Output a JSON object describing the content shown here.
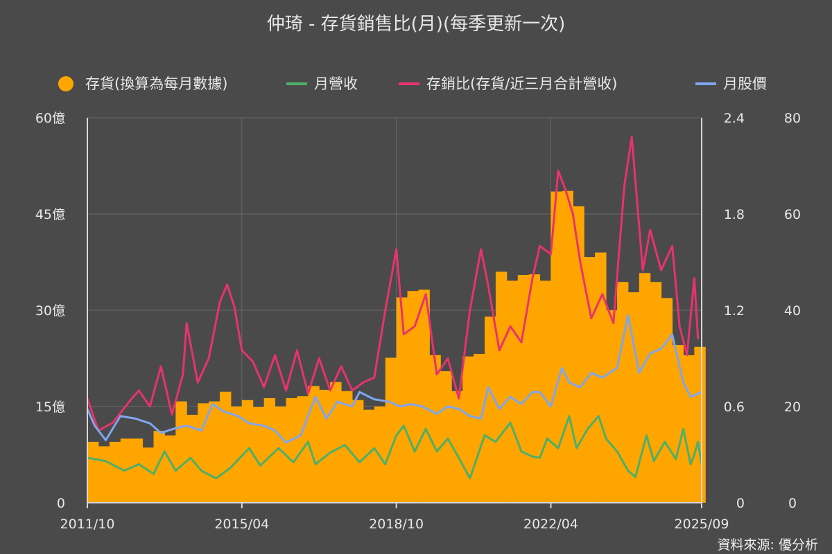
{
  "chart_data": {
    "type": "bar",
    "title": "仲琦 - 存貨銷售比(月)(每季更新一次)",
    "source": "資料來源: 優分析",
    "x_range": [
      "2011/10",
      "2025/09"
    ],
    "x_tick_labels": [
      "2011/10",
      "2015/04",
      "2018/10",
      "2022/04",
      "2025/09"
    ],
    "y_left": {
      "ticks": [
        "0",
        "15億",
        "30億",
        "45億",
        "60億"
      ],
      "range": [
        0,
        60
      ],
      "unit": "億"
    },
    "y_mid": {
      "ticks": [
        "0",
        "0.6",
        "1.2",
        "1.8",
        "2.4"
      ],
      "range": [
        0,
        2.4
      ]
    },
    "y_right": {
      "ticks": [
        "0",
        "20",
        "40",
        "60",
        "80"
      ],
      "range": [
        0,
        80
      ]
    },
    "legend": [
      {
        "label": "存貨(換算為每月數據)",
        "marker": "dot",
        "color": "#ffa500"
      },
      {
        "label": "月營收",
        "marker": "line",
        "color": "#4caf6a"
      },
      {
        "label": "存銷比(存貨/近三月合計營收)",
        "marker": "line",
        "color": "#e8336c"
      },
      {
        "label": "月股價",
        "marker": "line",
        "color": "#7fa6ee"
      }
    ],
    "series": [
      {
        "name": "存貨(換算為每月數據)",
        "kind": "bar",
        "axis": "left",
        "color": "#ffa500",
        "points": [
          [
            "2011-10",
            9.5
          ],
          [
            "2012-01",
            8.8
          ],
          [
            "2012-04",
            9.5
          ],
          [
            "2012-07",
            10.0
          ],
          [
            "2012-10",
            10.0
          ],
          [
            "2013-01",
            8.6
          ],
          [
            "2013-04",
            11.2
          ],
          [
            "2013-07",
            10.5
          ],
          [
            "2013-10",
            15.8
          ],
          [
            "2014-01",
            13.7
          ],
          [
            "2014-04",
            15.5
          ],
          [
            "2014-07",
            15.8
          ],
          [
            "2014-10",
            17.3
          ],
          [
            "2015-01",
            15.0
          ],
          [
            "2015-04",
            16.0
          ],
          [
            "2015-07",
            14.9
          ],
          [
            "2015-10",
            16.3
          ],
          [
            "2016-01",
            15.0
          ],
          [
            "2016-04",
            16.3
          ],
          [
            "2016-07",
            16.6
          ],
          [
            "2016-10",
            18.2
          ],
          [
            "2017-01",
            17.6
          ],
          [
            "2017-04",
            18.8
          ],
          [
            "2017-07",
            17.4
          ],
          [
            "2017-10",
            16.0
          ],
          [
            "2018-01",
            14.5
          ],
          [
            "2018-04",
            15.0
          ],
          [
            "2018-07",
            22.6
          ],
          [
            "2018-10",
            32.0
          ],
          [
            "2019-01",
            33.0
          ],
          [
            "2019-04",
            33.2
          ],
          [
            "2019-07",
            23.0
          ],
          [
            "2019-10",
            20.5
          ],
          [
            "2020-01",
            17.4
          ],
          [
            "2020-04",
            22.8
          ],
          [
            "2020-07",
            23.2
          ],
          [
            "2020-10",
            29.0
          ],
          [
            "2021-01",
            36.0
          ],
          [
            "2021-04",
            34.6
          ],
          [
            "2021-07",
            35.5
          ],
          [
            "2021-10",
            35.6
          ],
          [
            "2022-01",
            34.6
          ],
          [
            "2022-04",
            48.5
          ],
          [
            "2022-07",
            48.6
          ],
          [
            "2022-10",
            46.2
          ],
          [
            "2023-01",
            38.3
          ],
          [
            "2023-04",
            39.0
          ],
          [
            "2023-07",
            30.0
          ],
          [
            "2023-10",
            34.4
          ],
          [
            "2024-01",
            32.8
          ],
          [
            "2024-04",
            35.8
          ],
          [
            "2024-07",
            34.4
          ],
          [
            "2024-10",
            31.9
          ],
          [
            "2025-01",
            24.6
          ],
          [
            "2025-04",
            23.0
          ],
          [
            "2025-07",
            24.3
          ]
        ]
      },
      {
        "name": "月營收",
        "kind": "line",
        "axis": "left",
        "color": "#4caf6a",
        "points": [
          [
            "2011-10",
            7.0
          ],
          [
            "2012-03",
            6.5
          ],
          [
            "2012-08",
            5.0
          ],
          [
            "2012-12",
            6.0
          ],
          [
            "2013-04",
            4.5
          ],
          [
            "2013-07",
            8.0
          ],
          [
            "2013-10",
            5.0
          ],
          [
            "2014-02",
            7.0
          ],
          [
            "2014-05",
            5.0
          ],
          [
            "2014-09",
            3.8
          ],
          [
            "2015-01",
            5.5
          ],
          [
            "2015-06",
            8.5
          ],
          [
            "2015-09",
            5.8
          ],
          [
            "2016-02",
            8.5
          ],
          [
            "2016-06",
            6.3
          ],
          [
            "2016-10",
            9.5
          ],
          [
            "2016-12",
            6.0
          ],
          [
            "2017-04",
            7.8
          ],
          [
            "2017-08",
            9.0
          ],
          [
            "2017-12",
            6.3
          ],
          [
            "2018-04",
            8.5
          ],
          [
            "2018-07",
            6.0
          ],
          [
            "2018-10",
            10.5
          ],
          [
            "2018-12",
            12.0
          ],
          [
            "2019-03",
            8.0
          ],
          [
            "2019-06",
            11.5
          ],
          [
            "2019-09",
            8.0
          ],
          [
            "2019-12",
            10.0
          ],
          [
            "2020-03",
            7.0
          ],
          [
            "2020-06",
            3.8
          ],
          [
            "2020-10",
            10.5
          ],
          [
            "2021-01",
            9.5
          ],
          [
            "2021-05",
            12.5
          ],
          [
            "2021-08",
            8.0
          ],
          [
            "2021-11",
            7.2
          ],
          [
            "2022-01",
            7.0
          ],
          [
            "2022-03",
            10.0
          ],
          [
            "2022-06",
            8.5
          ],
          [
            "2022-09",
            13.5
          ],
          [
            "2022-11",
            8.5
          ],
          [
            "2023-02",
            11.5
          ],
          [
            "2023-05",
            13.5
          ],
          [
            "2023-07",
            10.0
          ],
          [
            "2023-10",
            8.0
          ],
          [
            "2024-01",
            5.0
          ],
          [
            "2024-03",
            4.0
          ],
          [
            "2024-06",
            10.5
          ],
          [
            "2024-08",
            6.5
          ],
          [
            "2024-11",
            9.5
          ],
          [
            "2025-02",
            6.8
          ],
          [
            "2025-04",
            11.5
          ],
          [
            "2025-06",
            6.0
          ],
          [
            "2025-07",
            7.5
          ],
          [
            "2025-08",
            9.5
          ],
          [
            "2025-09",
            6.0
          ]
        ]
      },
      {
        "name": "存銷比(存貨/近三月合計營收)",
        "kind": "line",
        "axis": "mid",
        "color": "#e8336c",
        "points": [
          [
            "2011-10",
            0.65
          ],
          [
            "2012-01",
            0.45
          ],
          [
            "2012-05",
            0.5
          ],
          [
            "2012-09",
            0.62
          ],
          [
            "2012-12",
            0.7
          ],
          [
            "2013-03",
            0.6
          ],
          [
            "2013-06",
            0.85
          ],
          [
            "2013-09",
            0.55
          ],
          [
            "2013-12",
            0.8
          ],
          [
            "2014-01",
            1.12
          ],
          [
            "2014-04",
            0.75
          ],
          [
            "2014-07",
            0.9
          ],
          [
            "2014-10",
            1.25
          ],
          [
            "2014-12",
            1.36
          ],
          [
            "2015-02",
            1.22
          ],
          [
            "2015-04",
            0.95
          ],
          [
            "2015-07",
            0.88
          ],
          [
            "2015-10",
            0.72
          ],
          [
            "2016-01",
            0.92
          ],
          [
            "2016-04",
            0.7
          ],
          [
            "2016-07",
            0.95
          ],
          [
            "2016-10",
            0.68
          ],
          [
            "2017-01",
            0.9
          ],
          [
            "2017-04",
            0.7
          ],
          [
            "2017-07",
            0.85
          ],
          [
            "2017-10",
            0.7
          ],
          [
            "2018-01",
            0.75
          ],
          [
            "2018-04",
            0.78
          ],
          [
            "2018-07",
            1.2
          ],
          [
            "2018-10",
            1.58
          ],
          [
            "2018-12",
            1.05
          ],
          [
            "2019-03",
            1.1
          ],
          [
            "2019-06",
            1.3
          ],
          [
            "2019-09",
            0.8
          ],
          [
            "2019-12",
            0.9
          ],
          [
            "2020-03",
            0.65
          ],
          [
            "2020-06",
            1.2
          ],
          [
            "2020-09",
            1.58
          ],
          [
            "2020-11",
            1.35
          ],
          [
            "2021-02",
            0.95
          ],
          [
            "2021-05",
            1.1
          ],
          [
            "2021-08",
            1.0
          ],
          [
            "2021-11",
            1.4
          ],
          [
            "2022-01",
            1.6
          ],
          [
            "2022-04",
            1.55
          ],
          [
            "2022-06",
            2.07
          ],
          [
            "2022-08",
            1.95
          ],
          [
            "2022-10",
            1.8
          ],
          [
            "2022-12",
            1.5
          ],
          [
            "2023-03",
            1.15
          ],
          [
            "2023-06",
            1.3
          ],
          [
            "2023-09",
            1.12
          ],
          [
            "2023-12",
            1.98
          ],
          [
            "2024-02",
            2.28
          ],
          [
            "2024-05",
            1.45
          ],
          [
            "2024-07",
            1.7
          ],
          [
            "2024-10",
            1.45
          ],
          [
            "2025-01",
            1.6
          ],
          [
            "2025-03",
            1.1
          ],
          [
            "2025-05",
            0.92
          ],
          [
            "2025-07",
            1.4
          ],
          [
            "2025-08",
            1.02
          ]
        ]
      },
      {
        "name": "月股價",
        "kind": "line",
        "axis": "right",
        "color": "#7fa6ee",
        "points": [
          [
            "2011-10",
            19.5
          ],
          [
            "2011-12",
            16.0
          ],
          [
            "2012-03",
            13.0
          ],
          [
            "2012-07",
            18.0
          ],
          [
            "2012-11",
            17.5
          ],
          [
            "2013-03",
            16.5
          ],
          [
            "2013-06",
            14.5
          ],
          [
            "2013-10",
            15.5
          ],
          [
            "2014-01",
            16.0
          ],
          [
            "2014-05",
            15.0
          ],
          [
            "2014-08",
            20.5
          ],
          [
            "2014-11",
            19.0
          ],
          [
            "2015-03",
            18.0
          ],
          [
            "2015-06",
            16.5
          ],
          [
            "2015-10",
            16.0
          ],
          [
            "2016-01",
            15.0
          ],
          [
            "2016-04",
            12.5
          ],
          [
            "2016-08",
            14.0
          ],
          [
            "2016-12",
            22.0
          ],
          [
            "2017-03",
            17.5
          ],
          [
            "2017-06",
            21.0
          ],
          [
            "2017-10",
            20.0
          ],
          [
            "2017-12",
            23.0
          ],
          [
            "2018-04",
            21.5
          ],
          [
            "2018-08",
            21.0
          ],
          [
            "2018-11",
            20.0
          ],
          [
            "2019-02",
            20.5
          ],
          [
            "2019-05",
            20.0
          ],
          [
            "2019-09",
            18.5
          ],
          [
            "2019-12",
            20.0
          ],
          [
            "2020-03",
            19.5
          ],
          [
            "2020-06",
            18.0
          ],
          [
            "2020-09",
            17.5
          ],
          [
            "2020-11",
            24.0
          ],
          [
            "2021-02",
            19.5
          ],
          [
            "2021-05",
            22.0
          ],
          [
            "2021-08",
            20.5
          ],
          [
            "2021-11",
            23.0
          ],
          [
            "2022-01",
            23.0
          ],
          [
            "2022-04",
            20.0
          ],
          [
            "2022-07",
            28.0
          ],
          [
            "2022-09",
            25.0
          ],
          [
            "2022-12",
            24.0
          ],
          [
            "2023-03",
            27.0
          ],
          [
            "2023-06",
            26.0
          ],
          [
            "2023-10",
            28.0
          ],
          [
            "2024-01",
            39.0
          ],
          [
            "2024-04",
            27.0
          ],
          [
            "2024-07",
            31.0
          ],
          [
            "2024-10",
            32.0
          ],
          [
            "2025-01",
            35.0
          ],
          [
            "2025-04",
            25.0
          ],
          [
            "2025-06",
            22.0
          ],
          [
            "2025-09",
            23.0
          ]
        ]
      }
    ]
  }
}
